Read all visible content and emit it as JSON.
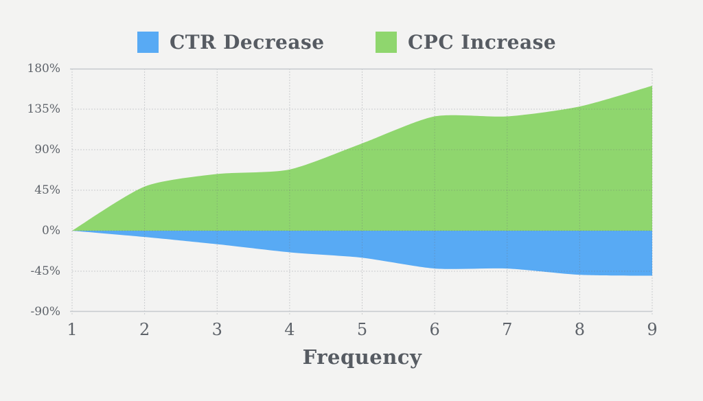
{
  "legend": {
    "items": [
      {
        "label": "CTR Decrease",
        "color": "#58aaf4"
      },
      {
        "label": "CPC Increase",
        "color": "#8fd66e"
      }
    ]
  },
  "chart_data": {
    "type": "area",
    "x": [
      1,
      2,
      3,
      4,
      5,
      6,
      7,
      8,
      9
    ],
    "series": [
      {
        "name": "CPC Increase",
        "color": "#8fd66e",
        "values": [
          0,
          49,
          63,
          68,
          97,
          127,
          127,
          138,
          161
        ]
      },
      {
        "name": "CTR Decrease",
        "color": "#58aaf4",
        "values": [
          0,
          -7,
          -15,
          -24,
          -30,
          -42,
          -42,
          -49,
          -50
        ]
      }
    ],
    "xlabel": "Frequency",
    "ylim": [
      -90,
      180
    ],
    "ytick_step": 45,
    "ytick_labels": [
      "180%",
      "135%",
      "90%",
      "45%",
      "0%",
      "-45%",
      "-90%"
    ],
    "xtick_labels": [
      "1",
      "2",
      "3",
      "4",
      "5",
      "6",
      "7",
      "8",
      "9"
    ],
    "legend_position": "top",
    "grid": true,
    "baseline": 0
  },
  "colors": {
    "background": "#f3f3f2",
    "plot_border": "#c5cacd",
    "gridline": "#6c7176",
    "tick_text": "#5d6269",
    "label_text": "#565b62"
  }
}
